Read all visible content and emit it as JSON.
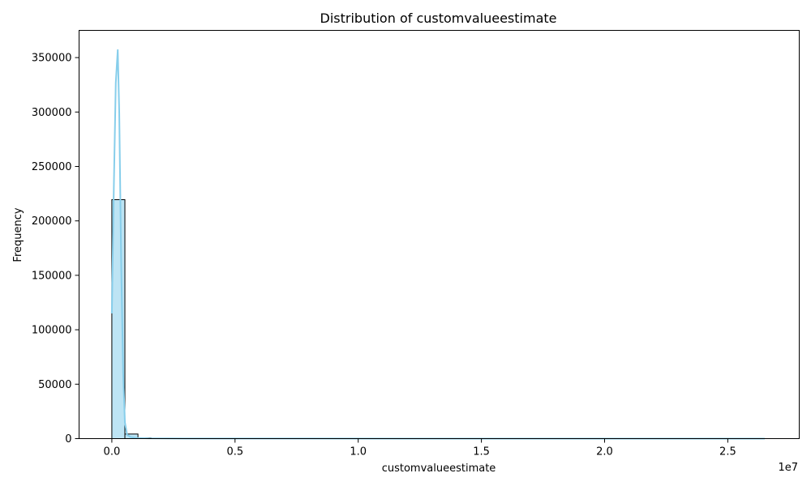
{
  "chart_data": {
    "type": "bar",
    "subtype": "histogram_with_kde",
    "title": "Distribution of customvalueestimate",
    "xlabel": "customvalueestimate",
    "ylabel": "Frequency",
    "x_offset_label": "1e7",
    "xlim": [
      -1330000,
      27900000
    ],
    "ylim": [
      0,
      375000
    ],
    "x_ticks": [
      0,
      5000000,
      10000000,
      15000000,
      20000000,
      25000000
    ],
    "x_tick_labels": [
      "0.0",
      "0.5",
      "1.0",
      "1.5",
      "2.0",
      "2.5"
    ],
    "y_ticks": [
      0,
      50000,
      100000,
      150000,
      200000,
      250000,
      300000,
      350000
    ],
    "y_tick_labels": [
      "0",
      "50000",
      "100000",
      "150000",
      "200000",
      "250000",
      "300000",
      "350000"
    ],
    "bins": {
      "bin_width": 530000,
      "left_edges": [
        0,
        530000,
        1060000,
        1590000
      ],
      "counts": [
        219500,
        4200,
        700,
        300
      ]
    },
    "kde": {
      "x": [
        0,
        80000,
        160000,
        240000,
        300000,
        380000,
        460000,
        530000,
        620000,
        750000,
        1000000,
        1500000,
        3000000,
        8000000,
        15000000,
        20000000,
        26500000
      ],
      "y": [
        115000,
        230000,
        327000,
        357000,
        300000,
        160000,
        60000,
        15000,
        3500,
        1500,
        600,
        250,
        100,
        50,
        20,
        10,
        5
      ]
    },
    "grid": false,
    "legend": "none",
    "colors": {
      "bar_fill": "#87ceeb",
      "bar_fill_opacity": 0.55,
      "bar_edge": "#000000",
      "kde_line": "#87ceeb",
      "axes": "#000000",
      "background": "#ffffff"
    }
  }
}
